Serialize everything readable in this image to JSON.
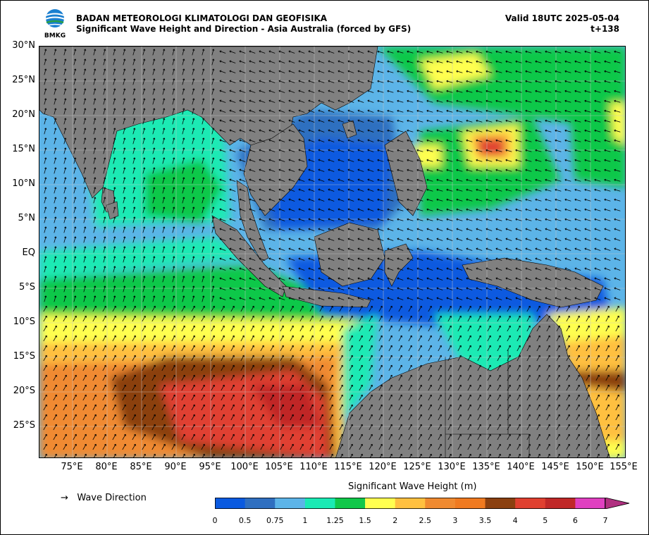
{
  "header": {
    "agency": "BADAN METEOROLOGI KLIMATOLOGI DAN GEOFISIKA",
    "subtitle": "Significant Wave Height and Direction - Asia Australia (forced by GFS)",
    "valid": "Valid 18UTC 2025-05-04",
    "timestep": "t+138",
    "logo_text": "BMKG"
  },
  "axes": {
    "lat_labels": [
      "30°N",
      "25°N",
      "20°N",
      "15°N",
      "10°N",
      "5°N",
      "EQ",
      "5°S",
      "10°S",
      "15°S",
      "20°S",
      "25°S"
    ],
    "lon_labels": [
      "75°E",
      "80°E",
      "85°E",
      "90°E",
      "95°E",
      "100°E",
      "105°E",
      "110°E",
      "115°E",
      "120°E",
      "125°E",
      "130°E",
      "135°E",
      "140°E",
      "145°E",
      "150°E",
      "155°E"
    ]
  },
  "legend": {
    "direction_label": "Wave Direction",
    "direction_symbol": "→",
    "colorbar_title": "Significant Wave Height (m)",
    "ticks": [
      "0",
      "0.5",
      "0.75",
      "1",
      "1.25",
      "1.5",
      "2",
      "2.5",
      "3",
      "3.5",
      "4",
      "5",
      "6",
      "7"
    ],
    "colors": [
      "#0a5ae0",
      "#2f6fc0",
      "#5cb4e8",
      "#1aeab4",
      "#10c84a",
      "#ffff50",
      "#ffc040",
      "#f08a30",
      "#f07a20",
      "#8b4010",
      "#e04030",
      "#c02828",
      "#e040c0",
      "#b03080"
    ]
  },
  "map_colors": {
    "land": "#808080",
    "border": "#000000"
  }
}
